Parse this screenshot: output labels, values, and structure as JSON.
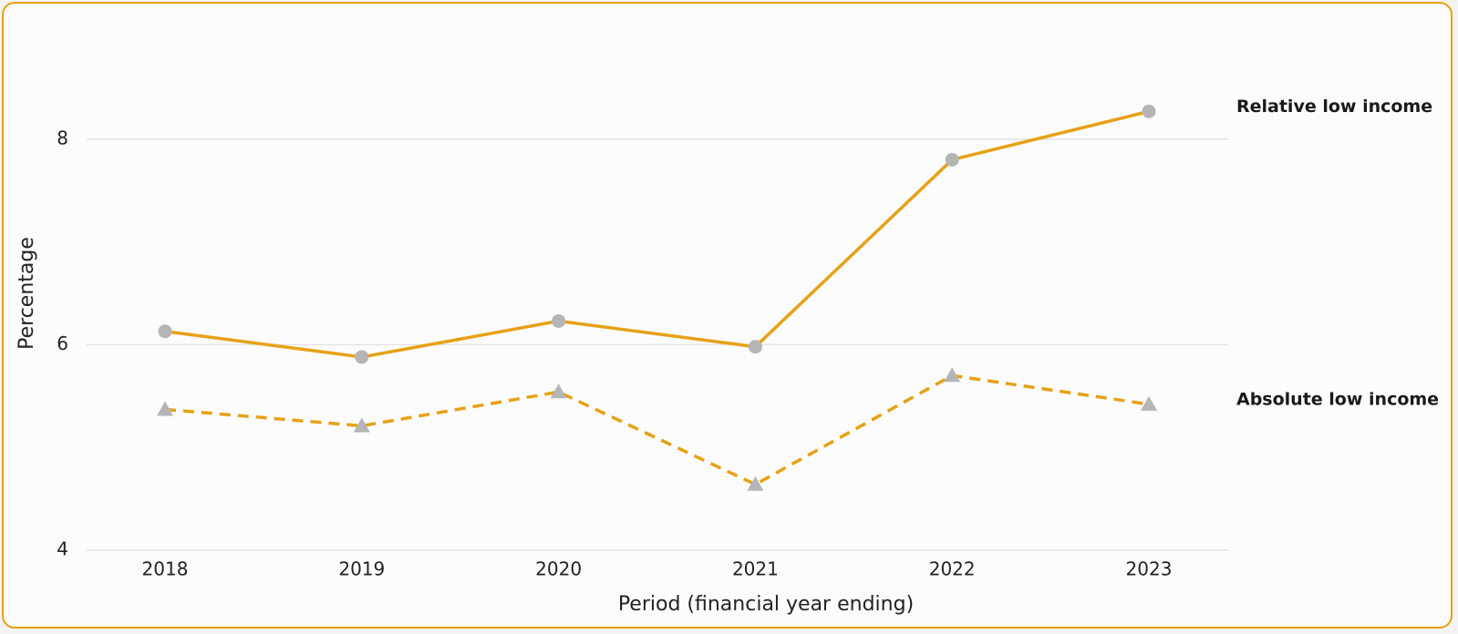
{
  "chart_data": {
    "type": "line",
    "categories": [
      "2018",
      "2019",
      "2020",
      "2021",
      "2022",
      "2023"
    ],
    "series": [
      {
        "name": "Relative low income",
        "color": "#e6a117",
        "marker": "circle",
        "dashed": false,
        "values": [
          6.13,
          5.88,
          6.23,
          5.98,
          7.8,
          8.27
        ]
      },
      {
        "name": "Absolute low income",
        "color": "#e6a117",
        "marker": "triangle",
        "dashed": true,
        "values": [
          5.37,
          5.21,
          5.54,
          4.64,
          5.7,
          5.42
        ]
      }
    ],
    "marker_color": "#b5b5b5",
    "xlabel": "Period (financial year ending)",
    "ylabel": "Percentage",
    "ylim": [
      4,
      9
    ],
    "yticks": [
      4,
      6,
      8
    ],
    "grid": true
  }
}
